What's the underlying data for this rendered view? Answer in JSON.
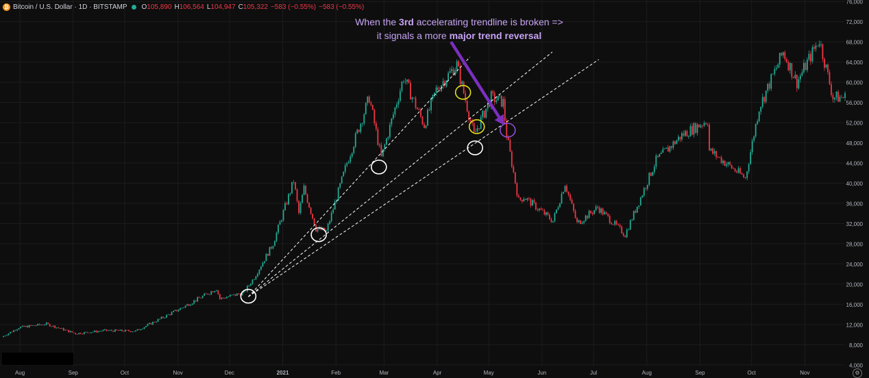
{
  "legend": {
    "symbol": "Bitcoin / U.S. Dollar · 1D · BITSTAMP",
    "coin_glyph": "₿",
    "o_label": "O",
    "o": "105,890",
    "h_label": "H",
    "h": "106,564",
    "l_label": "L",
    "l": "104,947",
    "c_label": "C",
    "c": "105,322",
    "change": "−583 (−0.55%)",
    "change2": "−583 (−0.55%)"
  },
  "annotation": {
    "line1_a": "When the ",
    "line1_bold": "3rd",
    "line1_b": " accelerating trendline is broken =>",
    "line2_a": "it signals a more ",
    "line2_bold": "major trend reversal",
    "color": "#c7a3f4"
  },
  "settings_icon": "gear-icon",
  "colors": {
    "up": "#22ab94",
    "down": "#f23645",
    "background": "#0e0e0e",
    "arrow": "#7b2fbe"
  },
  "chart_data": {
    "type": "candlestick",
    "x_tick_labels": [
      "Aug",
      "Sep",
      "Oct",
      "Nov",
      "Dec",
      "2021",
      "Feb",
      "Mar",
      "Apr",
      "May",
      "Jun",
      "Jul",
      "Aug",
      "Sep",
      "Oct",
      "Nov"
    ],
    "x_range": [
      "2020-07-22",
      "2021-11-24"
    ],
    "y_ticks": [
      4000,
      8000,
      12000,
      16000,
      20000,
      24000,
      28000,
      32000,
      36000,
      40000,
      44000,
      48000,
      52000,
      56000,
      60000,
      64000,
      68000,
      72000,
      76000
    ],
    "y_tick_labels": [
      "4,000",
      "8,000",
      "12,000",
      "16,000",
      "20,000",
      "24,000",
      "28,000",
      "32,000",
      "36,000",
      "40,000",
      "44,000",
      "48,000",
      "52,000",
      "56,000",
      "60,000",
      "64,000",
      "68,000",
      "72,000",
      "76,000"
    ],
    "ylim": [
      3700,
      76300
    ],
    "grid": true,
    "price_path": [
      [
        "2020-07-22",
        9500
      ],
      [
        "2020-08-01",
        11400
      ],
      [
        "2020-08-17",
        12100
      ],
      [
        "2020-09-03",
        10200
      ],
      [
        "2020-09-20",
        10800
      ],
      [
        "2020-10-08",
        10700
      ],
      [
        "2020-10-21",
        12900
      ],
      [
        "2020-11-05",
        15500
      ],
      [
        "2020-11-24",
        19100
      ],
      [
        "2020-11-26",
        17100
      ],
      [
        "2020-12-10",
        18300
      ],
      [
        "2020-12-16",
        21300
      ],
      [
        "2020-12-27",
        28000
      ],
      [
        "2021-01-08",
        40500
      ],
      [
        "2021-01-11",
        34000
      ],
      [
        "2021-01-14",
        39000
      ],
      [
        "2021-01-21",
        31000
      ],
      [
        "2021-01-27",
        30400
      ],
      [
        "2021-02-08",
        44000
      ],
      [
        "2021-02-21",
        57000
      ],
      [
        "2021-02-28",
        45000
      ],
      [
        "2021-03-13",
        61000
      ],
      [
        "2021-03-25",
        51500
      ],
      [
        "2021-04-01",
        58500
      ],
      [
        "2021-04-13",
        63500
      ],
      [
        "2021-04-23",
        49500
      ],
      [
        "2021-05-03",
        57000
      ],
      [
        "2021-05-10",
        56000
      ],
      [
        "2021-05-12",
        49500
      ],
      [
        "2021-05-19",
        36500
      ],
      [
        "2021-05-22",
        37300
      ],
      [
        "2021-06-08",
        32500
      ],
      [
        "2021-06-15",
        40000
      ],
      [
        "2021-06-22",
        32000
      ],
      [
        "2021-07-04",
        35200
      ],
      [
        "2021-07-20",
        29800
      ],
      [
        "2021-08-07",
        44500
      ],
      [
        "2021-08-22",
        49500
      ],
      [
        "2021-09-06",
        52500
      ],
      [
        "2021-09-07",
        46500
      ],
      [
        "2021-09-28",
        41000
      ],
      [
        "2021-10-06",
        55000
      ],
      [
        "2021-10-20",
        66000
      ],
      [
        "2021-10-28",
        60000
      ],
      [
        "2021-11-10",
        68500
      ],
      [
        "2021-11-18",
        57000
      ],
      [
        "2021-11-24",
        57000
      ]
    ],
    "trendlines": [
      {
        "from": [
          "2020-12-12",
          17500
        ],
        "to": [
          "2021-04-20",
          65000
        ]
      },
      {
        "from": [
          "2020-12-12",
          17500
        ],
        "to": [
          "2021-06-07",
          66000
        ]
      },
      {
        "from": [
          "2020-12-12",
          17500
        ],
        "to": [
          "2021-07-04",
          64500
        ]
      }
    ],
    "circles": [
      {
        "at": [
          "2020-12-12",
          17600
        ],
        "color": "white"
      },
      {
        "at": [
          "2021-01-22",
          29800
        ],
        "color": "white"
      },
      {
        "at": [
          "2021-02-26",
          43200
        ],
        "color": "white"
      },
      {
        "at": [
          "2021-04-23",
          47000
        ],
        "color": "white"
      },
      {
        "at": [
          "2021-04-16",
          58000
        ],
        "color": "yellow"
      },
      {
        "at": [
          "2021-04-24",
          51200
        ],
        "color": "yellow"
      },
      {
        "at": [
          "2021-05-12",
          50500
        ],
        "color": "purple"
      }
    ],
    "arrow": {
      "from": [
        "2021-04-09",
        68000
      ],
      "to": [
        "2021-05-10",
        51500
      ]
    }
  }
}
